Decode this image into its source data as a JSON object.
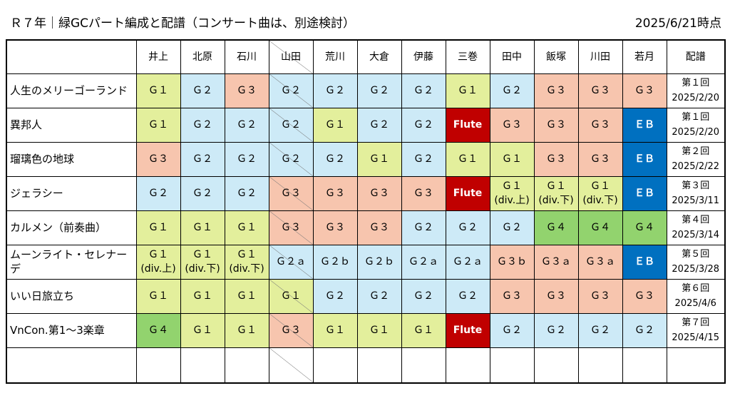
{
  "header": {
    "title": "Ｒ７年｜緑GCパート編成と配譜（コンサート曲は、別途検討）",
    "date": "2025/6/21時点"
  },
  "table": {
    "columns": [
      "井上",
      "北原",
      "石川",
      "山田",
      "荒川",
      "大倉",
      "伊藤",
      "三巻",
      "田中",
      "飯塚",
      "川田",
      "若月",
      "配譜"
    ],
    "rows": [
      {
        "song": "人生のメリーゴーランド",
        "cells": [
          {
            "lines": [
              "Ｇ１"
            ],
            "color": "#e3ef9c"
          },
          {
            "lines": [
              "Ｇ２"
            ],
            "color": "#cdeaf7"
          },
          {
            "lines": [
              "Ｇ３"
            ],
            "color": "#f7c5ae"
          },
          {
            "lines": [
              "Ｇ２"
            ],
            "color": "#cdeaf7"
          },
          {
            "lines": [
              "Ｇ２"
            ],
            "color": "#cdeaf7"
          },
          {
            "lines": [
              "Ｇ２"
            ],
            "color": "#cdeaf7"
          },
          {
            "lines": [
              "Ｇ２"
            ],
            "color": "#cdeaf7"
          },
          {
            "lines": [
              "Ｇ１"
            ],
            "color": "#e3ef9c"
          },
          {
            "lines": [
              "Ｇ２"
            ],
            "color": "#cdeaf7"
          },
          {
            "lines": [
              "Ｇ３"
            ],
            "color": "#f7c5ae"
          },
          {
            "lines": [
              "Ｇ３"
            ],
            "color": "#f7c5ae"
          },
          {
            "lines": [
              "Ｇ３"
            ],
            "color": "#f7c5ae"
          }
        ],
        "dist": [
          "第１回",
          "2025/2/20"
        ]
      },
      {
        "song": "異邦人",
        "cells": [
          {
            "lines": [
              "Ｇ１"
            ],
            "color": "#e3ef9c"
          },
          {
            "lines": [
              "Ｇ２"
            ],
            "color": "#cdeaf7"
          },
          {
            "lines": [
              "Ｇ２"
            ],
            "color": "#cdeaf7"
          },
          {
            "lines": [
              "Ｇ２"
            ],
            "color": "#cdeaf7"
          },
          {
            "lines": [
              "Ｇ１"
            ],
            "color": "#e3ef9c"
          },
          {
            "lines": [
              "Ｇ２"
            ],
            "color": "#cdeaf7"
          },
          {
            "lines": [
              "Ｇ２"
            ],
            "color": "#cdeaf7"
          },
          {
            "lines": [
              "Flute"
            ],
            "color": "#c00000",
            "text_color": "#ffffff"
          },
          {
            "lines": [
              "Ｇ３"
            ],
            "color": "#f7c5ae"
          },
          {
            "lines": [
              "Ｇ３"
            ],
            "color": "#f7c5ae"
          },
          {
            "lines": [
              "Ｇ３"
            ],
            "color": "#f7c5ae"
          },
          {
            "lines": [
              "ＥＢ"
            ],
            "color": "#0070c0",
            "text_color": "#ffffff"
          }
        ],
        "dist": [
          "第１回",
          "2025/2/20"
        ]
      },
      {
        "song": "瑠璃色の地球",
        "cells": [
          {
            "lines": [
              "Ｇ３"
            ],
            "color": "#f7c5ae"
          },
          {
            "lines": [
              "Ｇ２"
            ],
            "color": "#cdeaf7"
          },
          {
            "lines": [
              "Ｇ２"
            ],
            "color": "#cdeaf7"
          },
          {
            "lines": [
              "Ｇ２"
            ],
            "color": "#cdeaf7"
          },
          {
            "lines": [
              "Ｇ２"
            ],
            "color": "#cdeaf7"
          },
          {
            "lines": [
              "Ｇ１"
            ],
            "color": "#e3ef9c"
          },
          {
            "lines": [
              "Ｇ２"
            ],
            "color": "#cdeaf7"
          },
          {
            "lines": [
              "Ｇ１"
            ],
            "color": "#e3ef9c"
          },
          {
            "lines": [
              "Ｇ１"
            ],
            "color": "#e3ef9c"
          },
          {
            "lines": [
              "Ｇ３"
            ],
            "color": "#f7c5ae"
          },
          {
            "lines": [
              "Ｇ３"
            ],
            "color": "#f7c5ae"
          },
          {
            "lines": [
              "ＥＢ"
            ],
            "color": "#0070c0",
            "text_color": "#ffffff"
          }
        ],
        "dist": [
          "第２回",
          "2025/2/22"
        ]
      },
      {
        "song": "ジェラシー",
        "cells": [
          {
            "lines": [
              "Ｇ２"
            ],
            "color": "#cdeaf7"
          },
          {
            "lines": [
              "Ｇ２"
            ],
            "color": "#cdeaf7"
          },
          {
            "lines": [
              "Ｇ２"
            ],
            "color": "#cdeaf7"
          },
          {
            "lines": [
              "Ｇ３"
            ],
            "color": "#f7c5ae"
          },
          {
            "lines": [
              "Ｇ３"
            ],
            "color": "#f7c5ae"
          },
          {
            "lines": [
              "Ｇ３"
            ],
            "color": "#f7c5ae"
          },
          {
            "lines": [
              "Ｇ３"
            ],
            "color": "#f7c5ae"
          },
          {
            "lines": [
              "Flute"
            ],
            "color": "#c00000",
            "text_color": "#ffffff"
          },
          {
            "lines": [
              "Ｇ１",
              "(div.上)"
            ],
            "color": "#e3ef9c"
          },
          {
            "lines": [
              "Ｇ１",
              "(div.下)"
            ],
            "color": "#e3ef9c"
          },
          {
            "lines": [
              "Ｇ１",
              "(div.下)"
            ],
            "color": "#e3ef9c"
          },
          {
            "lines": [
              "ＥＢ"
            ],
            "color": "#0070c0",
            "text_color": "#ffffff"
          }
        ],
        "dist": [
          "第３回",
          "2025/3/11"
        ]
      },
      {
        "song": "カルメン（前奏曲）",
        "cells": [
          {
            "lines": [
              "Ｇ１"
            ],
            "color": "#e3ef9c"
          },
          {
            "lines": [
              "Ｇ１"
            ],
            "color": "#e3ef9c"
          },
          {
            "lines": [
              "Ｇ１"
            ],
            "color": "#e3ef9c"
          },
          {
            "lines": [
              "Ｇ３"
            ],
            "color": "#f7c5ae"
          },
          {
            "lines": [
              "Ｇ３"
            ],
            "color": "#f7c5ae"
          },
          {
            "lines": [
              "Ｇ３"
            ],
            "color": "#f7c5ae"
          },
          {
            "lines": [
              "Ｇ２"
            ],
            "color": "#cdeaf7"
          },
          {
            "lines": [
              "Ｇ２"
            ],
            "color": "#cdeaf7"
          },
          {
            "lines": [
              "Ｇ２"
            ],
            "color": "#cdeaf7"
          },
          {
            "lines": [
              "Ｇ４"
            ],
            "color": "#92d36e"
          },
          {
            "lines": [
              "Ｇ４"
            ],
            "color": "#92d36e"
          },
          {
            "lines": [
              "Ｇ４"
            ],
            "color": "#92d36e"
          }
        ],
        "dist": [
          "第４回",
          "2025/3/14"
        ]
      },
      {
        "song": "ムーンライト・セレナーデ",
        "cells": [
          {
            "lines": [
              "Ｇ１",
              "(div.上)"
            ],
            "color": "#e3ef9c"
          },
          {
            "lines": [
              "Ｇ１",
              "(div.下)"
            ],
            "color": "#e3ef9c"
          },
          {
            "lines": [
              "Ｇ１",
              "(div.下)"
            ],
            "color": "#e3ef9c"
          },
          {
            "lines": [
              "Ｇ２ａ"
            ],
            "color": "#cdeaf7"
          },
          {
            "lines": [
              "Ｇ２ｂ"
            ],
            "color": "#cdeaf7"
          },
          {
            "lines": [
              "Ｇ２ｂ"
            ],
            "color": "#cdeaf7"
          },
          {
            "lines": [
              "Ｇ２ａ"
            ],
            "color": "#cdeaf7"
          },
          {
            "lines": [
              "Ｇ２ａ"
            ],
            "color": "#cdeaf7"
          },
          {
            "lines": [
              "Ｇ３ｂ"
            ],
            "color": "#f7c5ae"
          },
          {
            "lines": [
              "Ｇ３ａ"
            ],
            "color": "#f7c5ae"
          },
          {
            "lines": [
              "Ｇ３ａ"
            ],
            "color": "#f7c5ae"
          },
          {
            "lines": [
              "ＥＢ"
            ],
            "color": "#0070c0",
            "text_color": "#ffffff"
          }
        ],
        "dist": [
          "第５回",
          "2025/3/28"
        ]
      },
      {
        "song": "いい日旅立ち",
        "cells": [
          {
            "lines": [
              "Ｇ１"
            ],
            "color": "#e3ef9c"
          },
          {
            "lines": [
              "Ｇ１"
            ],
            "color": "#e3ef9c"
          },
          {
            "lines": [
              "Ｇ１"
            ],
            "color": "#e3ef9c"
          },
          {
            "lines": [
              "Ｇ１"
            ],
            "color": "#e3ef9c"
          },
          {
            "lines": [
              "Ｇ２"
            ],
            "color": "#cdeaf7"
          },
          {
            "lines": [
              "Ｇ２"
            ],
            "color": "#cdeaf7"
          },
          {
            "lines": [
              "Ｇ２"
            ],
            "color": "#cdeaf7"
          },
          {
            "lines": [
              "Ｇ２"
            ],
            "color": "#cdeaf7"
          },
          {
            "lines": [
              "Ｇ３"
            ],
            "color": "#f7c5ae"
          },
          {
            "lines": [
              "Ｇ３"
            ],
            "color": "#f7c5ae"
          },
          {
            "lines": [
              "Ｇ３"
            ],
            "color": "#f7c5ae"
          },
          {
            "lines": [
              "Ｇ３"
            ],
            "color": "#f7c5ae"
          }
        ],
        "dist": [
          "第６回",
          "2025/4/6"
        ]
      },
      {
        "song": "VnCon.第1～3楽章",
        "cells": [
          {
            "lines": [
              "Ｇ４"
            ],
            "color": "#92d36e"
          },
          {
            "lines": [
              "Ｇ１"
            ],
            "color": "#e3ef9c"
          },
          {
            "lines": [
              "Ｇ１"
            ],
            "color": "#e3ef9c"
          },
          {
            "lines": [
              "Ｇ３"
            ],
            "color": "#f7c5ae"
          },
          {
            "lines": [
              "Ｇ１"
            ],
            "color": "#e3ef9c"
          },
          {
            "lines": [
              "Ｇ１"
            ],
            "color": "#e3ef9c"
          },
          {
            "lines": [
              "Ｇ１"
            ],
            "color": "#e3ef9c"
          },
          {
            "lines": [
              "Flute"
            ],
            "color": "#c00000",
            "text_color": "#ffffff"
          },
          {
            "lines": [
              "Ｇ２"
            ],
            "color": "#cdeaf7"
          },
          {
            "lines": [
              "Ｇ２"
            ],
            "color": "#cdeaf7"
          },
          {
            "lines": [
              "Ｇ２"
            ],
            "color": "#cdeaf7"
          },
          {
            "lines": [
              "Ｇ２"
            ],
            "color": "#cdeaf7"
          }
        ],
        "dist": [
          "第７回",
          "2025/4/15"
        ]
      }
    ]
  }
}
